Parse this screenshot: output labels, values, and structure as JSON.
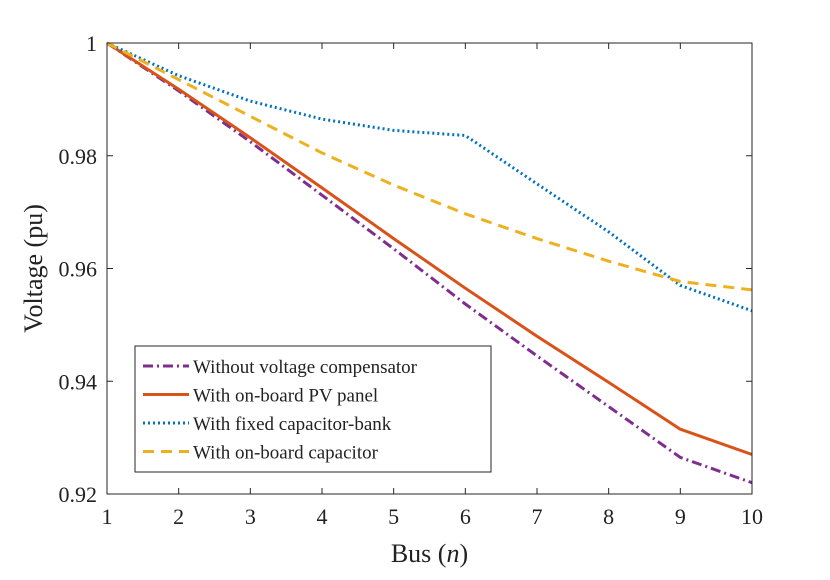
{
  "chart_data": {
    "type": "line",
    "xlabel": "Bus",
    "xlabel_var": "n",
    "ylabel": "Voltage (pu)",
    "xlim": [
      1,
      10
    ],
    "ylim": [
      0.92,
      1.0
    ],
    "x_ticks": [
      1,
      2,
      3,
      4,
      5,
      6,
      7,
      8,
      9,
      10
    ],
    "y_ticks": [
      0.92,
      0.94,
      0.96,
      0.98,
      1.0
    ],
    "y_tick_labels": [
      "0.92",
      "0.94",
      "0.96",
      "0.98",
      "1"
    ],
    "grid": false,
    "legend_position": "bottom-left",
    "series": [
      {
        "name": "Without voltage compensator",
        "color": "#7e2f8e",
        "style": "dashdot",
        "x": [
          1,
          2,
          3,
          4,
          5,
          6,
          7,
          8,
          9,
          10
        ],
        "y": [
          1.0,
          0.9915,
          0.9825,
          0.973,
          0.9635,
          0.9537,
          0.9445,
          0.9355,
          0.9265,
          0.922
        ]
      },
      {
        "name": "With on-board PV panel",
        "color": "#d95319",
        "style": "solid",
        "x": [
          1,
          2,
          3,
          4,
          5,
          6,
          7,
          8,
          9,
          10
        ],
        "y": [
          1.0,
          0.9918,
          0.9832,
          0.9743,
          0.9653,
          0.9565,
          0.948,
          0.9398,
          0.9315,
          0.927
        ]
      },
      {
        "name": "With fixed capacitor-bank",
        "color": "#0072bd",
        "style": "dotted",
        "x": [
          1,
          2,
          3,
          4,
          5,
          6,
          7,
          8,
          9,
          10
        ],
        "y": [
          1.0,
          0.9942,
          0.9897,
          0.9865,
          0.9845,
          0.9836,
          0.975,
          0.9665,
          0.957,
          0.9525
        ]
      },
      {
        "name": "With on-board capacitor",
        "color": "#edb120",
        "style": "dashed",
        "x": [
          1,
          2,
          3,
          4,
          5,
          6,
          7,
          8,
          9,
          10
        ],
        "y": [
          1.0,
          0.9935,
          0.987,
          0.9805,
          0.9748,
          0.9697,
          0.9653,
          0.9613,
          0.9577,
          0.9562
        ]
      }
    ]
  }
}
